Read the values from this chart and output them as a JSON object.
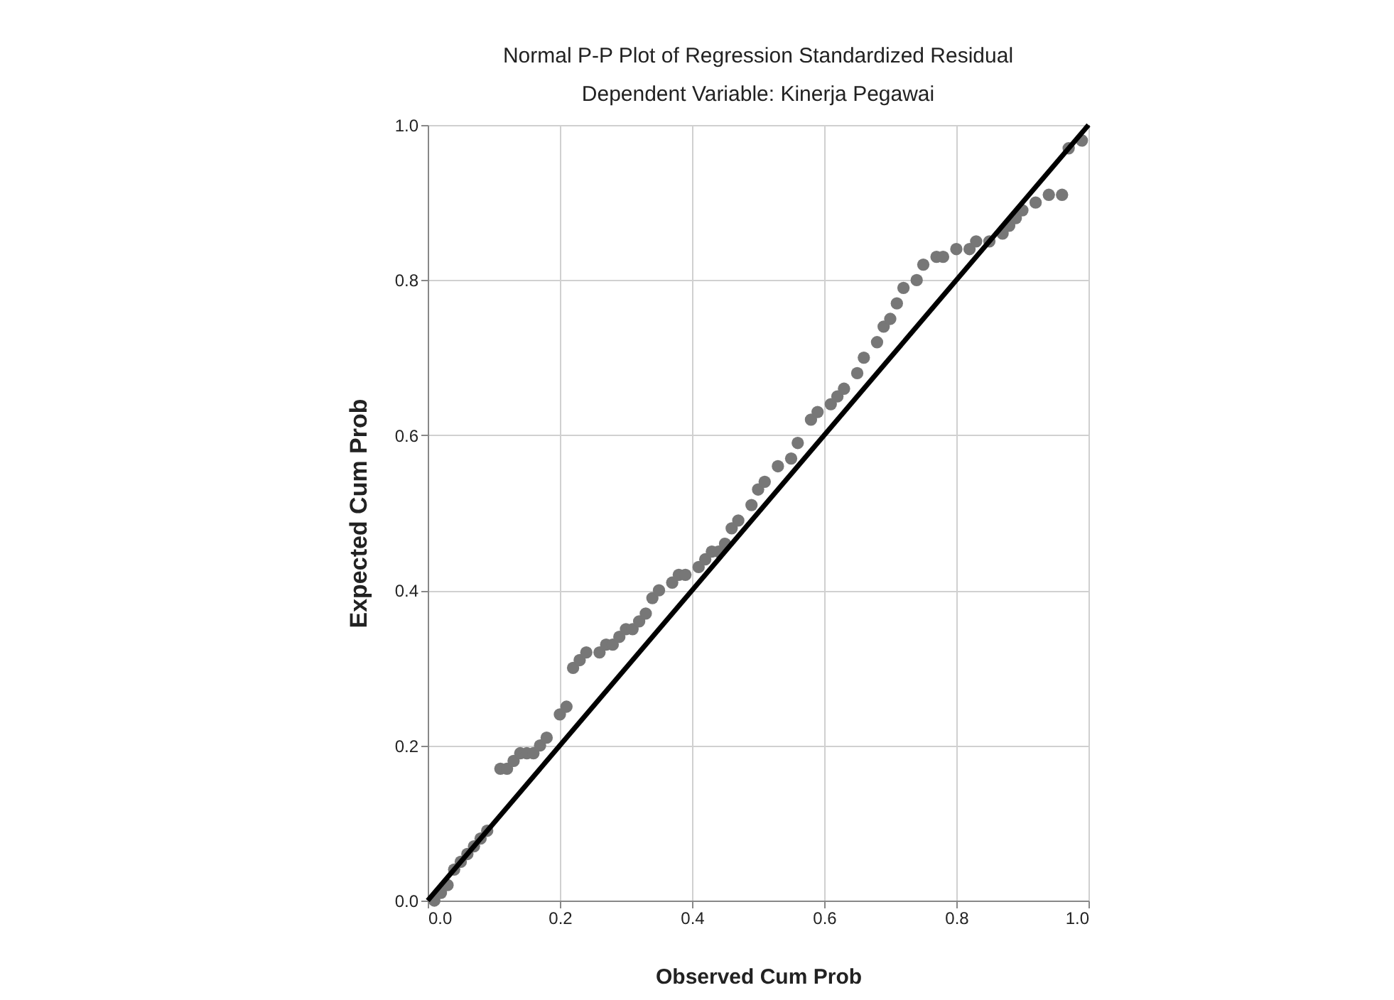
{
  "chart_data": {
    "type": "scatter",
    "title": "Normal P-P Plot of Regression Standardized Residual",
    "subtitle": "Dependent Variable: Kinerja Pegawai",
    "xlabel": "Observed Cum Prob",
    "ylabel": "Expected Cum Prob",
    "x": [
      0.01,
      0.02,
      0.03,
      0.04,
      0.05,
      0.06,
      0.07,
      0.08,
      0.09,
      0.11,
      0.12,
      0.13,
      0.14,
      0.15,
      0.16,
      0.17,
      0.18,
      0.2,
      0.21,
      0.22,
      0.23,
      0.24,
      0.26,
      0.27,
      0.28,
      0.29,
      0.3,
      0.31,
      0.32,
      0.33,
      0.34,
      0.35,
      0.37,
      0.38,
      0.39,
      0.41,
      0.42,
      0.43,
      0.44,
      0.45,
      0.46,
      0.47,
      0.49,
      0.5,
      0.51,
      0.53,
      0.55,
      0.56,
      0.58,
      0.59,
      0.61,
      0.62,
      0.63,
      0.65,
      0.66,
      0.68,
      0.69,
      0.7,
      0.71,
      0.72,
      0.74,
      0.75,
      0.77,
      0.78,
      0.8,
      0.82,
      0.83,
      0.85,
      0.87,
      0.88,
      0.89,
      0.9,
      0.92,
      0.94,
      0.96,
      0.97,
      0.99
    ],
    "series": [
      {
        "color": "#777777",
        "values": [
          0.0,
          0.01,
          0.02,
          0.04,
          0.05,
          0.06,
          0.07,
          0.08,
          0.09,
          0.17,
          0.17,
          0.18,
          0.19,
          0.19,
          0.19,
          0.2,
          0.21,
          0.24,
          0.25,
          0.3,
          0.31,
          0.32,
          0.32,
          0.33,
          0.33,
          0.34,
          0.35,
          0.35,
          0.36,
          0.37,
          0.39,
          0.4,
          0.41,
          0.42,
          0.42,
          0.43,
          0.44,
          0.45,
          0.45,
          0.46,
          0.48,
          0.49,
          0.51,
          0.53,
          0.54,
          0.56,
          0.57,
          0.59,
          0.62,
          0.63,
          0.64,
          0.65,
          0.66,
          0.68,
          0.7,
          0.72,
          0.74,
          0.75,
          0.77,
          0.79,
          0.8,
          0.82,
          0.83,
          0.83,
          0.84,
          0.84,
          0.85,
          0.85,
          0.86,
          0.87,
          0.88,
          0.89,
          0.9,
          0.91,
          0.91,
          0.97,
          0.98
        ]
      },
      {
        "type": "line",
        "marker": "none",
        "color": "#000000",
        "x": [
          0,
          1
        ],
        "values": [
          0,
          1
        ]
      }
    ],
    "xlim": [
      0,
      1
    ],
    "ylim": [
      0,
      1
    ],
    "xticks": [
      {
        "value": 0,
        "label": "0.0"
      },
      {
        "value": 0.2,
        "label": "0.2"
      },
      {
        "value": 0.4,
        "label": "0.4"
      },
      {
        "value": 0.6,
        "label": "0.6"
      },
      {
        "value": 0.8,
        "label": "0.8"
      },
      {
        "value": 1,
        "label": "1.0"
      }
    ],
    "yticks": [
      {
        "value": 0,
        "label": "0.0"
      },
      {
        "value": 0.2,
        "label": "0.2"
      },
      {
        "value": 0.4,
        "label": "0.4"
      },
      {
        "value": 0.6,
        "label": "0.6"
      },
      {
        "value": 0.8,
        "label": "0.8"
      },
      {
        "value": 1,
        "label": "1.0"
      }
    ],
    "grid": true,
    "marker": "circle"
  }
}
